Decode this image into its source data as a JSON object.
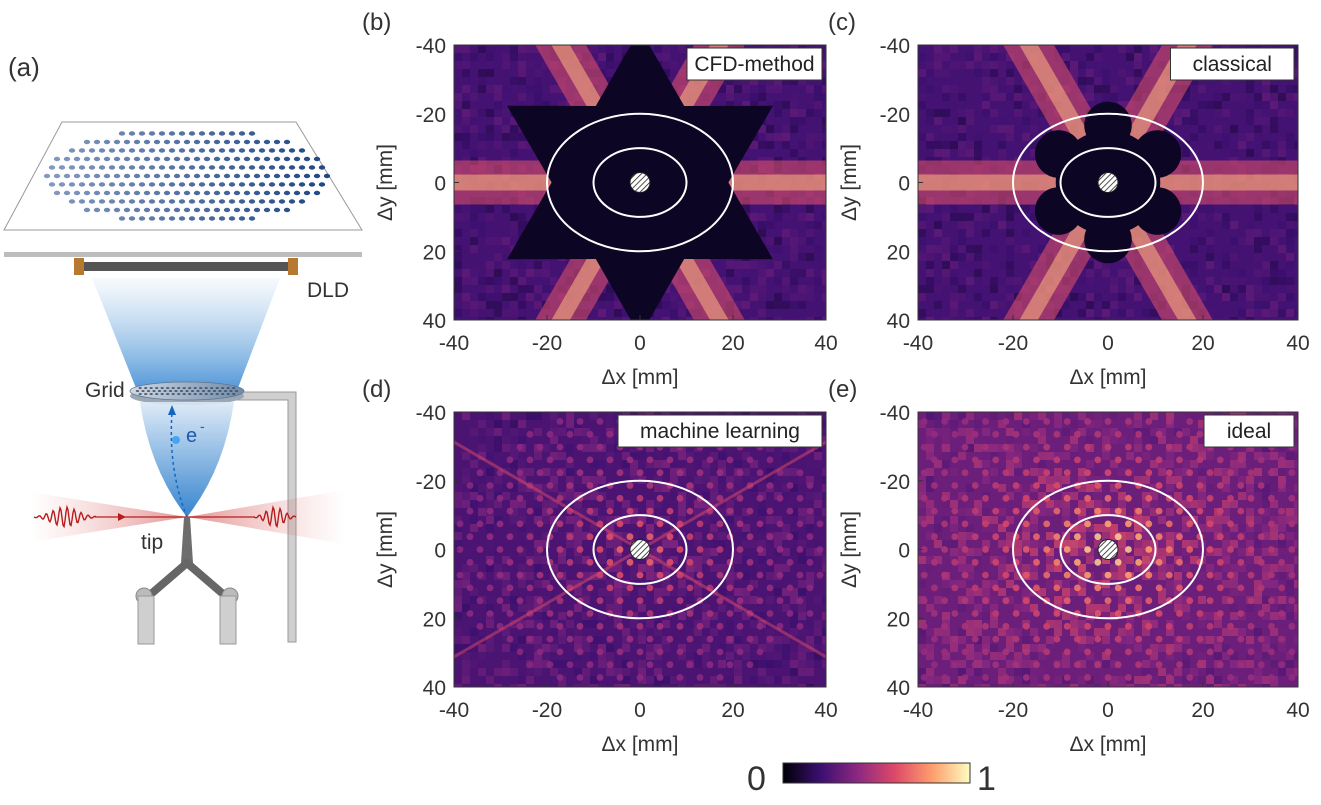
{
  "panel_a": {
    "label": "(a)",
    "dld_label": "DLD",
    "grid_label": "Grid",
    "electron_label": "e",
    "electron_superscript": "-",
    "tip_label": "tip"
  },
  "panels": [
    {
      "id": "b",
      "label": "(b)",
      "method": "CFD-method",
      "xlabel": "Δx [mm]",
      "ylabel": "Δy [mm]",
      "xticks": [
        "-40",
        "-20",
        "0",
        "20",
        "40"
      ],
      "yticks": [
        "-40",
        "-20",
        "0",
        "20",
        "40"
      ],
      "mask": "star",
      "pattern": "streaks"
    },
    {
      "id": "c",
      "label": "(c)",
      "method": "classical",
      "xlabel": "Δx [mm]",
      "ylabel": "Δy [mm]",
      "xticks": [
        "-40",
        "-20",
        "0",
        "20",
        "40"
      ],
      "yticks": [
        "-40",
        "-20",
        "0",
        "20",
        "40"
      ],
      "mask": "flower",
      "pattern": "streaks"
    },
    {
      "id": "d",
      "label": "(d)",
      "method": "machine learning",
      "xlabel": "Δx [mm]",
      "ylabel": "Δy [mm]",
      "xticks": [
        "-40",
        "-20",
        "0",
        "20",
        "40"
      ],
      "yticks": [
        "-40",
        "-20",
        "0",
        "20",
        "40"
      ],
      "mask": "none",
      "pattern": "lattice-weak"
    },
    {
      "id": "e",
      "label": "(e)",
      "method": "ideal",
      "xlabel": "Δx [mm]",
      "ylabel": "Δy [mm]",
      "xticks": [
        "-40",
        "-20",
        "0",
        "20",
        "40"
      ],
      "yticks": [
        "-40",
        "-20",
        "0",
        "20",
        "40"
      ],
      "mask": "none",
      "pattern": "lattice-strong"
    }
  ],
  "colorbar": {
    "min_label": "0",
    "max_label": "1",
    "colormap": [
      "#000004",
      "#3b0f70",
      "#8c2981",
      "#de4968",
      "#fe9f6d",
      "#fcfdbf"
    ]
  },
  "chart_data": [
    {
      "type": "heatmap",
      "title": "CFD-method",
      "xlabel": "Δx [mm]",
      "ylabel": "Δy [mm]",
      "xlim": [
        -40,
        40
      ],
      "ylim": [
        40,
        -40
      ],
      "circle_radii_mm": [
        10,
        20
      ],
      "color_range": [
        0,
        1
      ],
      "colormap": "inferno"
    },
    {
      "type": "heatmap",
      "title": "classical",
      "xlabel": "Δx [mm]",
      "ylabel": "Δy [mm]",
      "xlim": [
        -40,
        40
      ],
      "ylim": [
        40,
        -40
      ],
      "circle_radii_mm": [
        10,
        20
      ],
      "color_range": [
        0,
        1
      ],
      "colormap": "inferno"
    },
    {
      "type": "heatmap",
      "title": "machine learning",
      "xlabel": "Δx [mm]",
      "ylabel": "Δy [mm]",
      "xlim": [
        -40,
        40
      ],
      "ylim": [
        40,
        -40
      ],
      "circle_radii_mm": [
        10,
        20
      ],
      "color_range": [
        0,
        1
      ],
      "colormap": "inferno"
    },
    {
      "type": "heatmap",
      "title": "ideal",
      "xlabel": "Δx [mm]",
      "ylabel": "Δy [mm]",
      "xlim": [
        -40,
        40
      ],
      "ylim": [
        40,
        -40
      ],
      "circle_radii_mm": [
        10,
        20
      ],
      "color_range": [
        0,
        1
      ],
      "colormap": "inferno"
    }
  ]
}
